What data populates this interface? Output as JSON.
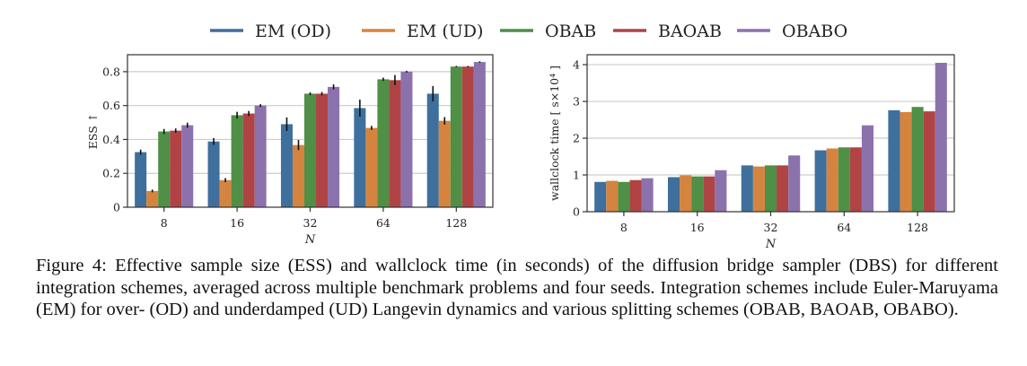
{
  "figure": {
    "caption": "Figure 4: Effective sample size (ESS) and wallclock time (in seconds) of the diffusion bridge sampler (DBS) for different integration schemes, averaged across multiple benchmark problems and four seeds. Integration schemes include Euler-Maruyama (EM) for over- (OD) and underdamped (UD) Langevin dynamics and various splitting schemes (OBAB, BAOAB, OBABO)."
  },
  "legend": {
    "placement": "top-center",
    "items": [
      {
        "label": "EM (OD)",
        "color": "#3f6f9c"
      },
      {
        "label": "EM (UD)",
        "color": "#d5843f"
      },
      {
        "label": "OBAB",
        "color": "#4f8f46"
      },
      {
        "label": "BAOAB",
        "color": "#b04444"
      },
      {
        "label": "OBABO",
        "color": "#8c72ad"
      }
    ]
  },
  "chart_data": [
    {
      "type": "bar",
      "title": "",
      "xlabel": "N",
      "ylabel": "ESS ↑",
      "categories": [
        "8",
        "16",
        "32",
        "64",
        "128"
      ],
      "ylim": [
        0,
        0.9
      ],
      "yticks": [
        0,
        0.2,
        0.4,
        0.6,
        0.8
      ],
      "ytick_labels": [
        "0",
        "0.2",
        "0.4",
        "0.6",
        "0.8"
      ],
      "grid": true,
      "series": [
        {
          "name": "EM (OD)",
          "values": [
            0.325,
            0.388,
            0.49,
            0.585,
            0.67
          ],
          "errors": [
            0.015,
            0.02,
            0.04,
            0.05,
            0.045
          ]
        },
        {
          "name": "EM (UD)",
          "values": [
            0.096,
            0.16,
            0.367,
            0.468,
            0.51
          ],
          "errors": [
            0.008,
            0.012,
            0.03,
            0.012,
            0.022
          ]
        },
        {
          "name": "OBAB",
          "values": [
            0.447,
            0.543,
            0.67,
            0.755,
            0.83
          ],
          "errors": [
            0.015,
            0.02,
            0.008,
            0.01,
            0.004
          ]
        },
        {
          "name": "BAOAB",
          "values": [
            0.452,
            0.553,
            0.67,
            0.75,
            0.83
          ],
          "errors": [
            0.013,
            0.015,
            0.01,
            0.03,
            0.004
          ]
        },
        {
          "name": "OBABO",
          "values": [
            0.484,
            0.6,
            0.71,
            0.8,
            0.857
          ],
          "errors": [
            0.015,
            0.008,
            0.015,
            0.005,
            0.004
          ]
        }
      ]
    },
    {
      "type": "bar",
      "title": "",
      "xlabel": "N",
      "ylabel": "wallclock time [ s×10⁴ ]",
      "categories": [
        "8",
        "16",
        "32",
        "64",
        "128"
      ],
      "ylim": [
        0,
        4.27
      ],
      "yticks": [
        0,
        1,
        2,
        3,
        4
      ],
      "ytick_labels": [
        "0",
        "1",
        "2",
        "3",
        "4"
      ],
      "grid": true,
      "series": [
        {
          "name": "EM (OD)",
          "values": [
            0.81,
            0.94,
            1.26,
            1.67,
            2.76
          ]
        },
        {
          "name": "EM (UD)",
          "values": [
            0.84,
            0.99,
            1.23,
            1.72,
            2.71
          ]
        },
        {
          "name": "OBAB",
          "values": [
            0.81,
            0.96,
            1.26,
            1.75,
            2.85
          ]
        },
        {
          "name": "BAOAB",
          "values": [
            0.86,
            0.96,
            1.26,
            1.75,
            2.73
          ]
        },
        {
          "name": "OBABO",
          "values": [
            0.91,
            1.13,
            1.53,
            2.35,
            4.05
          ]
        }
      ]
    }
  ]
}
